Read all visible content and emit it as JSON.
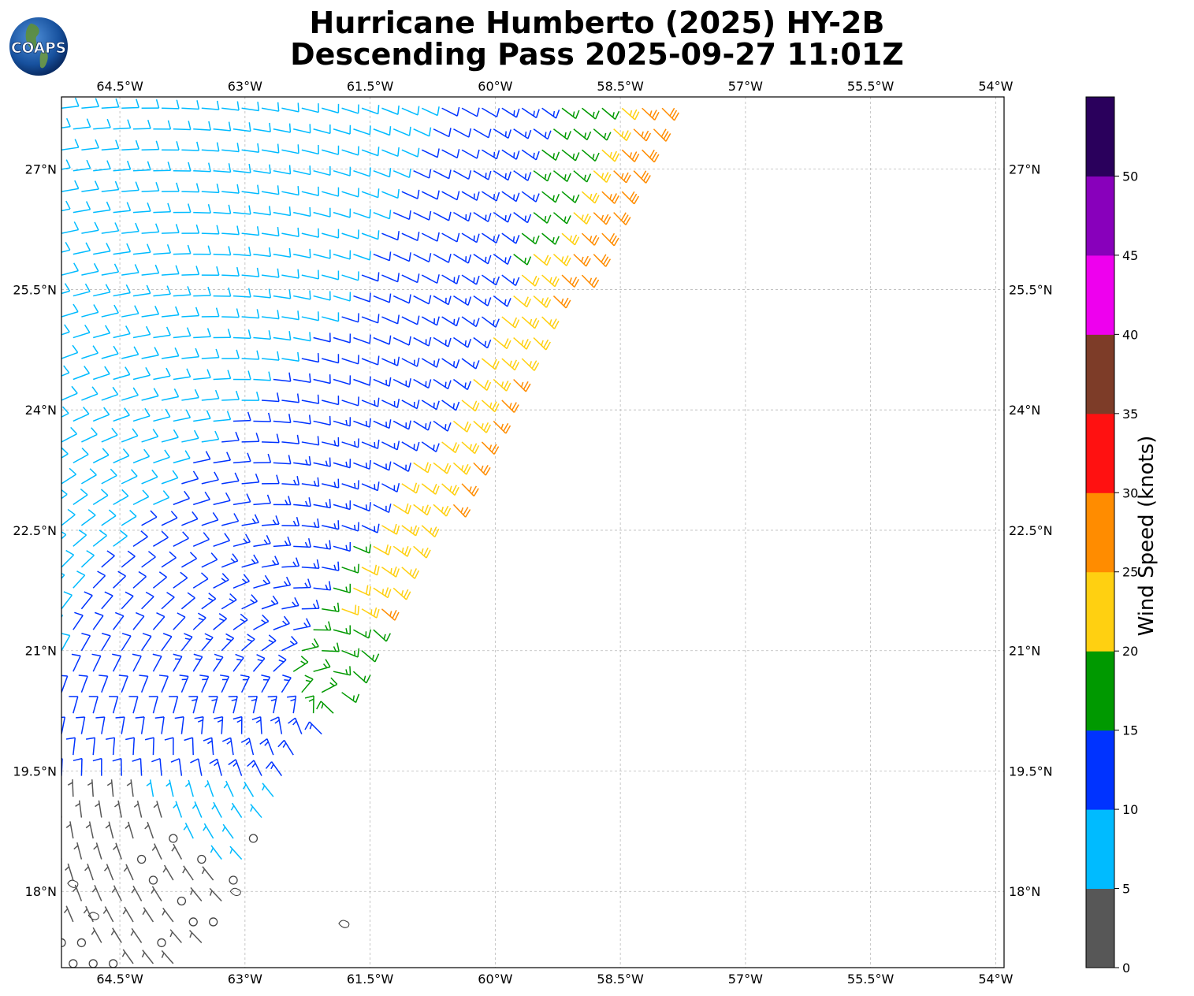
{
  "title": {
    "line1": "Hurricane Humberto (2025) HY-2B",
    "line2": "Descending Pass 2025-09-27 11:01Z"
  },
  "logo": {
    "text": "COAPS",
    "icon": "earth-globe-icon"
  },
  "map": {
    "lon_range": [
      -65.2,
      -53.9
    ],
    "lat_range": [
      17.05,
      27.9
    ],
    "lon_ticks": [
      "64.5°W",
      "63°W",
      "61.5°W",
      "60°W",
      "58.5°W",
      "57°W",
      "55.5°W",
      "54°W"
    ],
    "lon_tick_values": [
      -64.5,
      -63,
      -61.5,
      -60,
      -58.5,
      -57,
      -55.5,
      -54
    ],
    "lat_ticks": [
      "18°N",
      "19.5°N",
      "21°N",
      "22.5°N",
      "24°N",
      "25.5°N",
      "27°N"
    ],
    "lat_tick_values": [
      18,
      19.5,
      21,
      22.5,
      24,
      25.5,
      27
    ],
    "gridlines": true,
    "storm_center_approx": {
      "lon": -61.9,
      "lat": 20.3
    },
    "islands": [
      {
        "lon": -61.8,
        "lat": 17.6
      },
      {
        "lon": -64.8,
        "lat": 17.7
      },
      {
        "lon": -65.05,
        "lat": 18.1
      },
      {
        "lon": -63.1,
        "lat": 18.0
      }
    ]
  },
  "colorbar": {
    "label": "Wind Speed (knots)",
    "ticks": [
      "0",
      "5",
      "10",
      "15",
      "20",
      "25",
      "30",
      "35",
      "40",
      "45",
      "50"
    ],
    "bins": [
      {
        "min": 0,
        "max": 5,
        "color": "#575757"
      },
      {
        "min": 5,
        "max": 10,
        "color": "#00bbff"
      },
      {
        "min": 10,
        "max": 15,
        "color": "#0033ff"
      },
      {
        "min": 15,
        "max": 20,
        "color": "#009900"
      },
      {
        "min": 20,
        "max": 25,
        "color": "#ffd011"
      },
      {
        "min": 25,
        "max": 30,
        "color": "#ff8c00"
      },
      {
        "min": 30,
        "max": 35,
        "color": "#ff1111"
      },
      {
        "min": 35,
        "max": 40,
        "color": "#7d3c28"
      },
      {
        "min": 40,
        "max": 45,
        "color": "#ee00ee"
      },
      {
        "min": 45,
        "max": 50,
        "color": "#8800bb"
      },
      {
        "min": 50,
        "max": 55,
        "color": "#2a005c"
      }
    ]
  }
}
